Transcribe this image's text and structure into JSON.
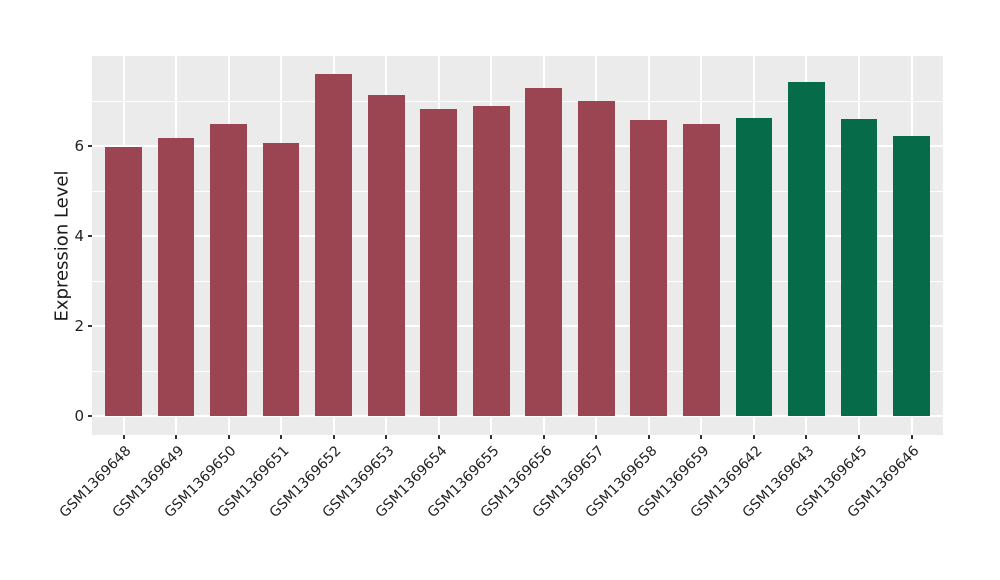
{
  "chart_data": {
    "type": "bar",
    "title": "",
    "xlabel": "",
    "ylabel": "Expression Level",
    "categories": [
      "GSM1369648",
      "GSM1369649",
      "GSM1369650",
      "GSM1369651",
      "GSM1369652",
      "GSM1369653",
      "GSM1369654",
      "GSM1369655",
      "GSM1369656",
      "GSM1369657",
      "GSM1369658",
      "GSM1369659",
      "GSM1369642",
      "GSM1369643",
      "GSM1369645",
      "GSM1369646"
    ],
    "values": [
      5.97,
      6.18,
      6.48,
      6.07,
      7.61,
      7.13,
      6.82,
      6.89,
      7.28,
      7.0,
      6.58,
      6.5,
      6.63,
      7.42,
      6.61,
      6.22
    ],
    "bar_groups": [
      "red",
      "red",
      "red",
      "red",
      "red",
      "red",
      "red",
      "red",
      "red",
      "red",
      "red",
      "red",
      "green",
      "green",
      "green",
      "green"
    ],
    "group_colors": {
      "red": "#9A4551",
      "green": "#056B48"
    },
    "yticks": [
      0,
      2,
      4,
      6
    ],
    "ytick_labels": [
      "0",
      "2",
      "4",
      "6"
    ],
    "minor_grid_y": [
      1,
      3,
      5,
      7
    ],
    "ylim": [
      -0.42,
      8.0
    ],
    "grid": true,
    "legend_position": "none",
    "panel_background": "#EBEBEB",
    "grid_color": "#FFFFFF",
    "figure_background": "#FFFFFF"
  }
}
